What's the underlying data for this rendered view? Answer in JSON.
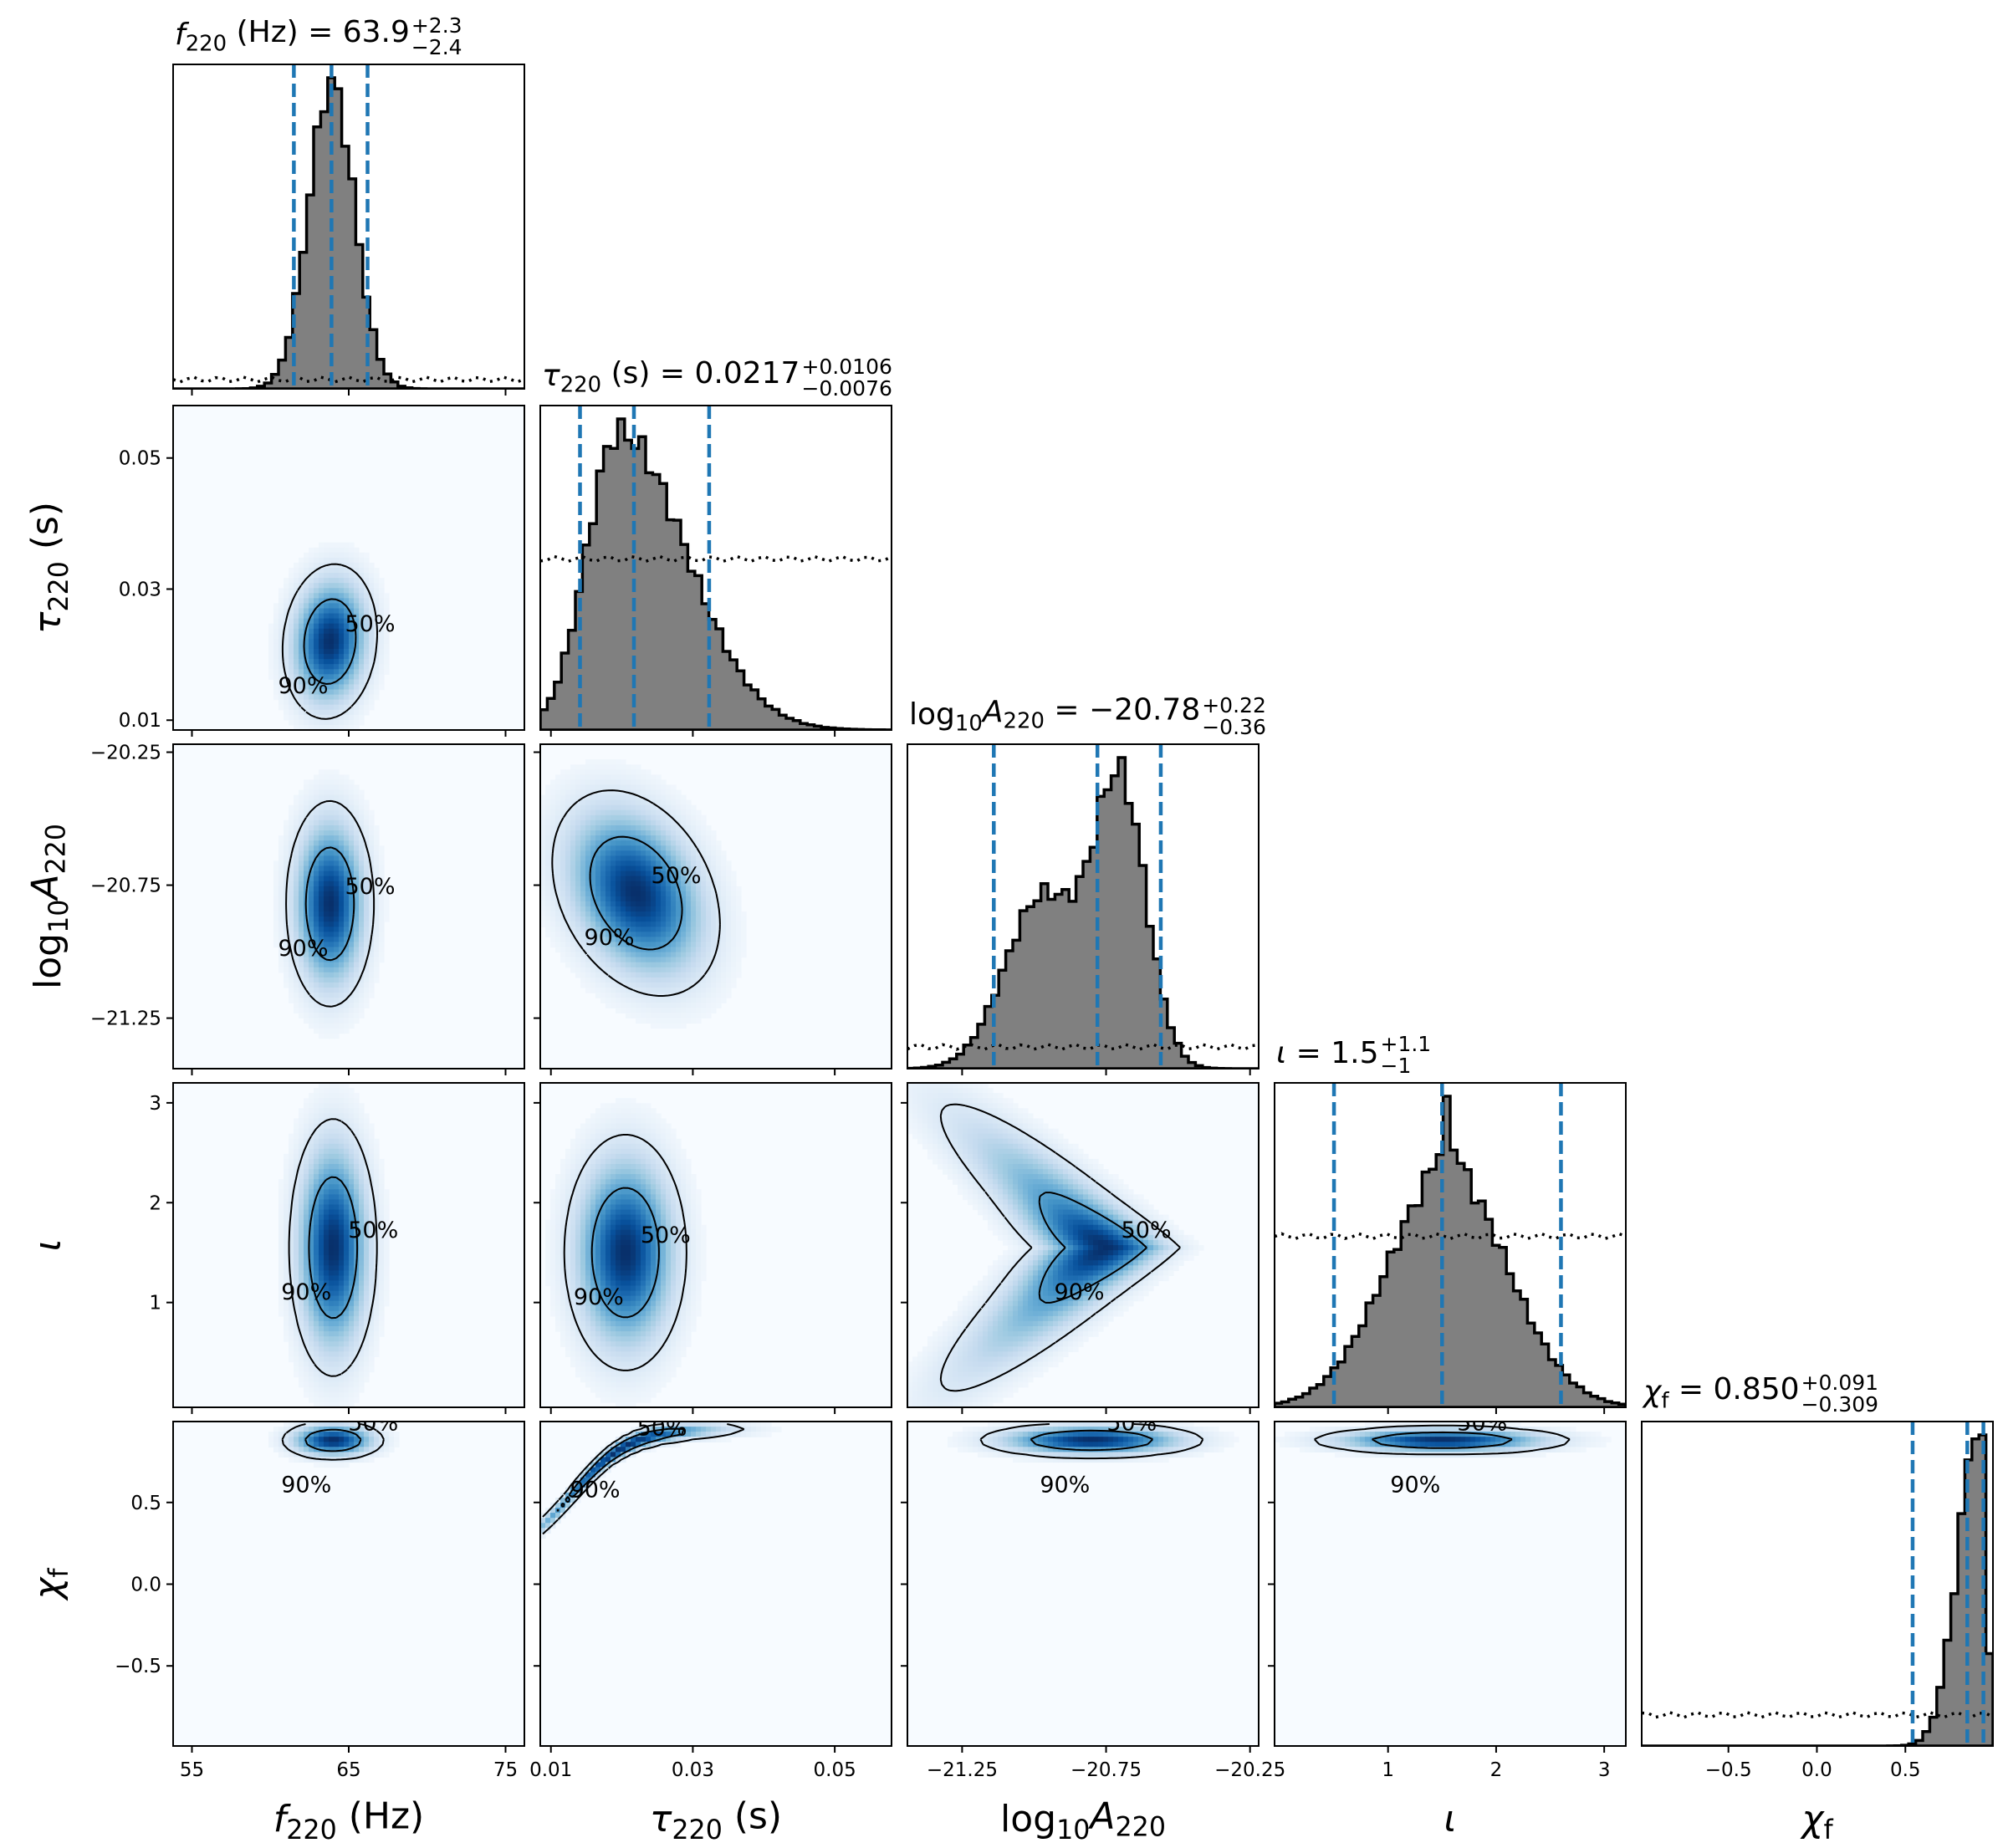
{
  "titles": {
    "f220": {
      "main": "f",
      "sub": "220",
      "rest": " (Hz) = 63.9",
      "sup": "+2.3",
      "low": "−2.4"
    },
    "tau220": {
      "main": "τ",
      "sub": "220",
      "rest": " (s) = 0.0217",
      "sup": "+0.0106",
      "low": "−0.0076"
    },
    "logA": {
      "pre": "log",
      "presub": "10",
      "main": "A",
      "sub": "220",
      "rest": " = −20.78",
      "sup": "+0.22",
      "low": "−0.36"
    },
    "iota": {
      "main": "ι",
      "rest": " = 1.5",
      "sup": "+1.1",
      "low": "−1"
    },
    "chi": {
      "main": "χ",
      "sub": "f",
      "rest": " = 0.850",
      "sup": "+0.091",
      "low": "−0.309"
    }
  },
  "axis_labels": {
    "f220": {
      "main": "f",
      "sub": "220",
      "rest": " (Hz)"
    },
    "tau220": {
      "main": "τ",
      "sub": "220",
      "rest": " (s)"
    },
    "logA": {
      "pre": "log",
      "presub": "10",
      "main": "A",
      "sub": "220"
    },
    "iota": {
      "main": "ι"
    },
    "chi": {
      "main": "χ",
      "sub": "f"
    }
  },
  "contour_labels": {
    "inner": "50%",
    "outer": "90%"
  },
  "colors": {
    "hist_fill": "#808080",
    "quantile_line": "#1f77b4",
    "density_dark": "#08306b",
    "density_light": "#f7fbff"
  },
  "chart_data": {
    "type": "corner",
    "parameters": [
      "f220",
      "tau220",
      "logA",
      "iota",
      "chi"
    ],
    "ranges": {
      "f220": [
        53.8,
        76.2
      ],
      "tau220": [
        0.0085,
        0.058
      ],
      "logA": [
        -21.44,
        -20.22
      ],
      "iota": [
        -0.05,
        3.2
      ],
      "chi": [
        -0.99,
        0.995
      ]
    },
    "ticks": {
      "f220": {
        "values": [
          55,
          65,
          75
        ],
        "labels": [
          "55",
          "65",
          "75"
        ]
      },
      "tau220": {
        "values": [
          0.01,
          0.03,
          0.05
        ],
        "labels": [
          "0.01",
          "0.03",
          "0.05"
        ]
      },
      "logA": {
        "values": [
          -21.25,
          -20.75,
          -20.25
        ],
        "labels": [
          "−21.25",
          "−20.75",
          "−20.25"
        ]
      },
      "iota": {
        "values": [
          1,
          2,
          3
        ],
        "labels": [
          "1",
          "2",
          "3"
        ]
      },
      "chi": {
        "values": [
          -0.5,
          0.0,
          0.5
        ],
        "labels": [
          "−0.5",
          "0.0",
          "0.5"
        ]
      }
    },
    "medians": {
      "f220": 63.9,
      "tau220": 0.0217,
      "logA": -20.78,
      "iota": 1.5,
      "chi": 0.85
    },
    "quantile_lines": {
      "f220": [
        61.5,
        63.9,
        66.2
      ],
      "tau220": [
        0.0141,
        0.0217,
        0.0323
      ],
      "logA": [
        -21.14,
        -20.78,
        -20.56
      ],
      "iota": [
        0.5,
        1.5,
        2.6
      ],
      "chi": [
        0.541,
        0.85,
        0.941
      ]
    },
    "marginals": {
      "f220": {
        "peak": 63.9,
        "sigma_lo": 1.45,
        "sigma_hi": 1.45,
        "prior_level": 0.03
      },
      "tau220": {
        "peak": 0.0195,
        "sigma_lo": 0.0045,
        "sigma_hi": 0.0095,
        "prior_level": 0.55
      },
      "logA": {
        "components": [
          {
            "mu": -20.7,
            "sigma": 0.09,
            "w": 1.0
          },
          {
            "mu": -20.97,
            "sigma": 0.13,
            "w": 0.62
          }
        ],
        "prior_level": 0.07
      },
      "iota": {
        "peak": 1.55,
        "sigma_lo": 0.55,
        "sigma_hi": 0.55,
        "cusp": 0.22,
        "prior_level": 0.55
      },
      "chi": {
        "peak": 0.92,
        "sigma_lo": 0.12,
        "sigma_hi": 0.035,
        "prior_level": 0.1
      }
    },
    "bins": 50,
    "joint_densities": [
      {
        "x": "f220",
        "y": "tau220",
        "mx": 63.8,
        "my": 0.022,
        "sx": 1.4,
        "sy": 0.0055,
        "rho": 0.1
      },
      {
        "x": "f220",
        "y": "logA",
        "mx": 63.8,
        "my": -20.82,
        "sx": 1.3,
        "sy": 0.18,
        "rho": 0.0
      },
      {
        "x": "f220",
        "y": "iota",
        "mx": 64.0,
        "my": 1.55,
        "sx": 1.3,
        "sy": 0.6,
        "rho": 0.0
      },
      {
        "x": "f220",
        "y": "chi",
        "mx": 64.0,
        "my": 0.88,
        "sx": 1.5,
        "sy": 0.055,
        "rho": 0.0
      },
      {
        "x": "tau220",
        "y": "logA",
        "mx": 0.022,
        "my": -20.78,
        "sx": 0.0055,
        "sy": 0.18,
        "rho": -0.3
      },
      {
        "x": "tau220",
        "y": "iota",
        "mx": 0.0205,
        "my": 1.5,
        "sx": 0.004,
        "sy": 0.55,
        "rho": 0.0
      },
      {
        "x": "tau220",
        "y": "chi",
        "mx": 0.02,
        "my": 0.85,
        "sx": 0.0055,
        "sy": 0.05,
        "rho": 0.95
      },
      {
        "x": "logA",
        "y": "iota",
        "mx": -20.75,
        "my": 1.55,
        "sx": 0.1,
        "sy": 0.4,
        "rho": 0.0
      },
      {
        "x": "logA",
        "y": "chi",
        "mx": -20.8,
        "my": 0.88,
        "sx": 0.18,
        "sy": 0.05,
        "rho": 0.0
      },
      {
        "x": "iota",
        "y": "chi",
        "mx": 1.5,
        "my": 0.88,
        "sx": 0.55,
        "sy": 0.04,
        "rho": 0.0
      }
    ],
    "grid": false,
    "legend": "none"
  }
}
